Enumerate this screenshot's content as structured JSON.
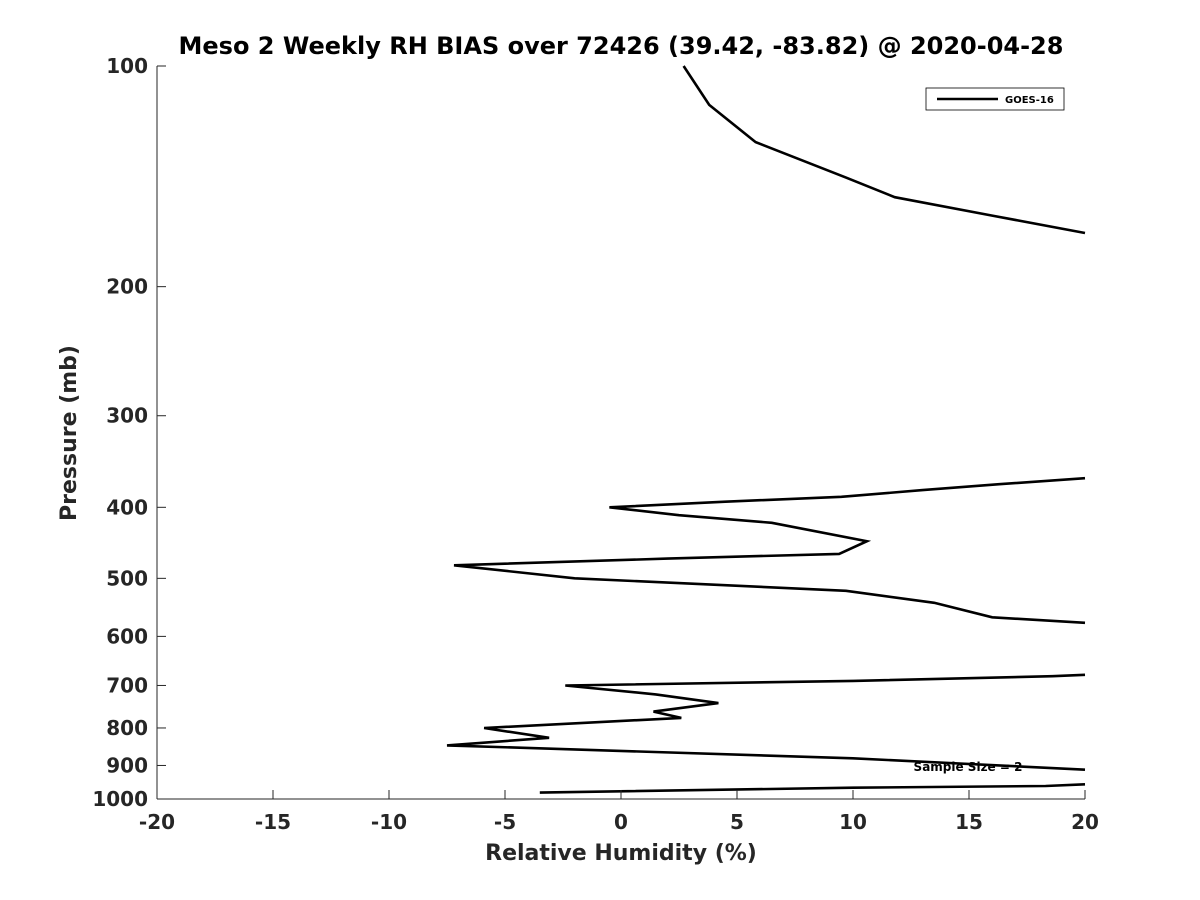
{
  "chart_data": {
    "type": "line",
    "title": "Meso 2 Weekly RH BIAS over 72426 (39.42, -83.82) @ 2020-04-28",
    "xlabel": "Relative Humidity (%)",
    "ylabel": "Pressure (mb)",
    "xlim": [
      -20,
      20
    ],
    "ylim": [
      100,
      1000
    ],
    "y_scale": "log",
    "y_reversed": true,
    "xticks": [
      -20,
      -15,
      -10,
      -5,
      0,
      5,
      10,
      15,
      20
    ],
    "xtick_labels": [
      "-20",
      "-15",
      "-10",
      "-5",
      "0",
      "5",
      "10",
      "15",
      "20"
    ],
    "yticks": [
      100,
      200,
      300,
      400,
      500,
      600,
      700,
      800,
      900,
      1000
    ],
    "ytick_labels": [
      "100",
      "200",
      "300",
      "400",
      "500",
      "600",
      "700",
      "800",
      "900",
      "1000"
    ],
    "grid": false,
    "legend_position": "top-right",
    "annotation": "Sample Size = 2",
    "series": [
      {
        "name": "GOES-16",
        "color": "#000000",
        "segments": [
          [
            [
              2.7,
              100
            ],
            [
              3.8,
              113
            ],
            [
              5.8,
              127
            ],
            [
              9.7,
              142
            ],
            [
              11.8,
              151
            ],
            [
              16.0,
              160
            ],
            [
              20,
              169
            ]
          ],
          [
            [
              20,
              365
            ],
            [
              16.3,
              372
            ],
            [
              13.0,
              379
            ],
            [
              9.5,
              387
            ],
            [
              4.5,
              393
            ],
            [
              -0.5,
              400
            ],
            [
              2.5,
              410
            ],
            [
              6.5,
              420
            ],
            [
              10.6,
              445
            ],
            [
              9.4,
              463
            ],
            [
              2.0,
              470
            ],
            [
              -7.2,
              480
            ],
            [
              -2.0,
              500
            ],
            [
              9.7,
              520
            ],
            [
              13.5,
              540
            ],
            [
              16.0,
              565
            ],
            [
              20,
              575
            ]
          ],
          [
            [
              20,
              677
            ],
            [
              18.6,
              680
            ],
            [
              10.0,
              690
            ],
            [
              -2.4,
              700
            ],
            [
              1.5,
              720
            ],
            [
              4.2,
              740
            ],
            [
              1.4,
              760
            ],
            [
              2.6,
              775
            ],
            [
              -5.9,
              800
            ],
            [
              -3.1,
              825
            ],
            [
              -7.5,
              845
            ],
            [
              10.0,
              880
            ],
            [
              20,
              912
            ]
          ],
          [
            [
              20,
              955
            ],
            [
              18.3,
              960
            ],
            [
              10.0,
              965
            ],
            [
              -3.5,
              980
            ]
          ]
        ]
      }
    ]
  }
}
